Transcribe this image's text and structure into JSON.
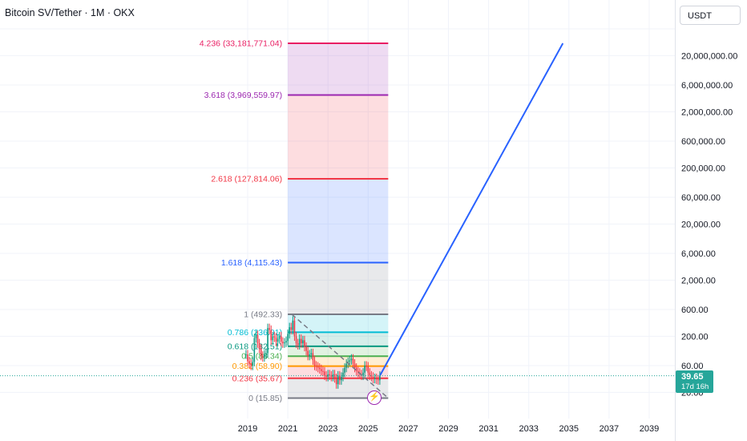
{
  "header": {
    "title": "Bitcoin SV/Tether · 1M · OKX",
    "currency_button": "USDT"
  },
  "price_badge": {
    "price": "39.65",
    "countdown": "17d 16h",
    "color": "#26a69a"
  },
  "event_icon": "lightning-icon",
  "chart_data": {
    "type": "line",
    "title": "Bitcoin SV/Tether · 1M · OKX",
    "y_scale": "log",
    "x_axis_ticks": [
      "2019",
      "2021",
      "2023",
      "2025",
      "2027",
      "2029",
      "2031",
      "2033",
      "2035",
      "2037",
      "2039"
    ],
    "y_axis_ticks": [
      "20,000,000.00",
      "6,000,000.00",
      "2,000,000.00",
      "600,000.00",
      "200,000.00",
      "60,000.00",
      "20,000.00",
      "6,000.00",
      "2,000.00",
      "600.00",
      "200.00",
      "60.00",
      "20.00"
    ],
    "current_price": 39.65,
    "fibonacci_extension": {
      "levels": [
        {
          "ratio": "4.236",
          "price": "33,181,771.04",
          "label": "4.236 (33,181,771.04)",
          "color": "#e91e63"
        },
        {
          "ratio": "3.618",
          "price": "3,969,559.97",
          "label": "3.618 (3,969,559.97)",
          "color": "#9c27b0"
        },
        {
          "ratio": "2.618",
          "price": "127,814.06",
          "label": "2.618 (127,814.06)",
          "color": "#f23645"
        },
        {
          "ratio": "1.618",
          "price": "4,115.43",
          "label": "1.618 (4,115.43)",
          "color": "#2962ff"
        },
        {
          "ratio": "1",
          "price": "492.33",
          "label": "1 (492.33)",
          "color": "#787b86"
        },
        {
          "ratio": "0.786",
          "price": "236.01",
          "label": "0.786 (236.01)",
          "color": "#00bcd4"
        },
        {
          "ratio": "0.618",
          "price": "132.51",
          "label": "0.618 (132.51)",
          "color": "#089981"
        },
        {
          "ratio": "0.5",
          "price": "88.34",
          "label": "0.5 (88.34)",
          "color": "#4caf50"
        },
        {
          "ratio": "0.382",
          "price": "58.90",
          "label": "0.382 (58.90)",
          "color": "#ff9800"
        },
        {
          "ratio": "0.236",
          "price": "35.67",
          "label": "0.236 (35.67)",
          "color": "#f23645"
        },
        {
          "ratio": "0",
          "price": "15.85",
          "label": "0 (15.85)",
          "color": "#787b86"
        }
      ]
    },
    "candles": [
      {
        "t": 2018.917,
        "c": 95
      },
      {
        "t": 2019.0,
        "c": 72
      },
      {
        "t": 2019.083,
        "c": 65
      },
      {
        "t": 2019.167,
        "c": 60
      },
      {
        "t": 2019.25,
        "c": 70
      },
      {
        "t": 2019.333,
        "c": 185
      },
      {
        "t": 2019.417,
        "c": 210
      },
      {
        "t": 2019.5,
        "c": 150
      },
      {
        "t": 2019.583,
        "c": 120
      },
      {
        "t": 2019.667,
        "c": 90
      },
      {
        "t": 2019.75,
        "c": 85
      },
      {
        "t": 2019.833,
        "c": 95
      },
      {
        "t": 2019.917,
        "c": 100
      },
      {
        "t": 2020.0,
        "c": 280
      },
      {
        "t": 2020.083,
        "c": 260
      },
      {
        "t": 2020.167,
        "c": 170
      },
      {
        "t": 2020.25,
        "c": 200
      },
      {
        "t": 2020.333,
        "c": 190
      },
      {
        "t": 2020.417,
        "c": 160
      },
      {
        "t": 2020.5,
        "c": 180
      },
      {
        "t": 2020.583,
        "c": 200
      },
      {
        "t": 2020.667,
        "c": 160
      },
      {
        "t": 2020.75,
        "c": 150
      },
      {
        "t": 2020.833,
        "c": 155
      },
      {
        "t": 2020.917,
        "c": 165
      },
      {
        "t": 2021.0,
        "c": 220
      },
      {
        "t": 2021.083,
        "c": 290
      },
      {
        "t": 2021.167,
        "c": 260
      },
      {
        "t": 2021.25,
        "c": 380
      },
      {
        "t": 2021.333,
        "c": 200
      },
      {
        "t": 2021.417,
        "c": 150
      },
      {
        "t": 2021.5,
        "c": 140
      },
      {
        "t": 2021.583,
        "c": 180
      },
      {
        "t": 2021.667,
        "c": 150
      },
      {
        "t": 2021.75,
        "c": 170
      },
      {
        "t": 2021.833,
        "c": 130
      },
      {
        "t": 2021.917,
        "c": 110
      },
      {
        "t": 2022.0,
        "c": 90
      },
      {
        "t": 2022.083,
        "c": 95
      },
      {
        "t": 2022.167,
        "c": 100
      },
      {
        "t": 2022.25,
        "c": 75
      },
      {
        "t": 2022.333,
        "c": 60
      },
      {
        "t": 2022.417,
        "c": 58
      },
      {
        "t": 2022.5,
        "c": 55
      },
      {
        "t": 2022.583,
        "c": 52
      },
      {
        "t": 2022.667,
        "c": 48
      },
      {
        "t": 2022.75,
        "c": 47
      },
      {
        "t": 2022.833,
        "c": 40
      },
      {
        "t": 2022.917,
        "c": 38
      },
      {
        "t": 2023.0,
        "c": 42
      },
      {
        "t": 2023.083,
        "c": 40
      },
      {
        "t": 2023.167,
        "c": 38
      },
      {
        "t": 2023.25,
        "c": 42
      },
      {
        "t": 2023.333,
        "c": 36
      },
      {
        "t": 2023.417,
        "c": 28
      },
      {
        "t": 2023.5,
        "c": 40
      },
      {
        "t": 2023.583,
        "c": 33
      },
      {
        "t": 2023.667,
        "c": 38
      },
      {
        "t": 2023.75,
        "c": 45
      },
      {
        "t": 2023.833,
        "c": 55
      },
      {
        "t": 2023.917,
        "c": 65
      },
      {
        "t": 2024.0,
        "c": 70
      },
      {
        "t": 2024.083,
        "c": 75
      },
      {
        "t": 2024.167,
        "c": 80
      },
      {
        "t": 2024.25,
        "c": 65
      },
      {
        "t": 2024.333,
        "c": 55
      },
      {
        "t": 2024.417,
        "c": 48
      },
      {
        "t": 2024.5,
        "c": 45
      },
      {
        "t": 2024.583,
        "c": 42
      },
      {
        "t": 2024.667,
        "c": 40
      },
      {
        "t": 2024.75,
        "c": 45
      },
      {
        "t": 2024.833,
        "c": 60
      },
      {
        "t": 2024.917,
        "c": 58
      },
      {
        "t": 2025.0,
        "c": 45
      },
      {
        "t": 2025.083,
        "c": 40
      },
      {
        "t": 2025.167,
        "c": 38
      },
      {
        "t": 2025.25,
        "c": 35
      },
      {
        "t": 2025.333,
        "c": 36
      },
      {
        "t": 2025.417,
        "c": 34
      },
      {
        "t": 2025.5,
        "c": 33
      },
      {
        "t": 2025.583,
        "c": 39.65
      }
    ],
    "trend_dashed": [
      {
        "t": 2021.2,
        "p": 492.33
      },
      {
        "t": 2026.0,
        "p": 15.85
      }
    ],
    "projection_line": [
      {
        "t": 2025.583,
        "p": 39.65
      },
      {
        "t": 2034.7,
        "p": 33181771.04
      }
    ],
    "fib_zone_time_range": [
      2021.0,
      2026.0
    ]
  }
}
